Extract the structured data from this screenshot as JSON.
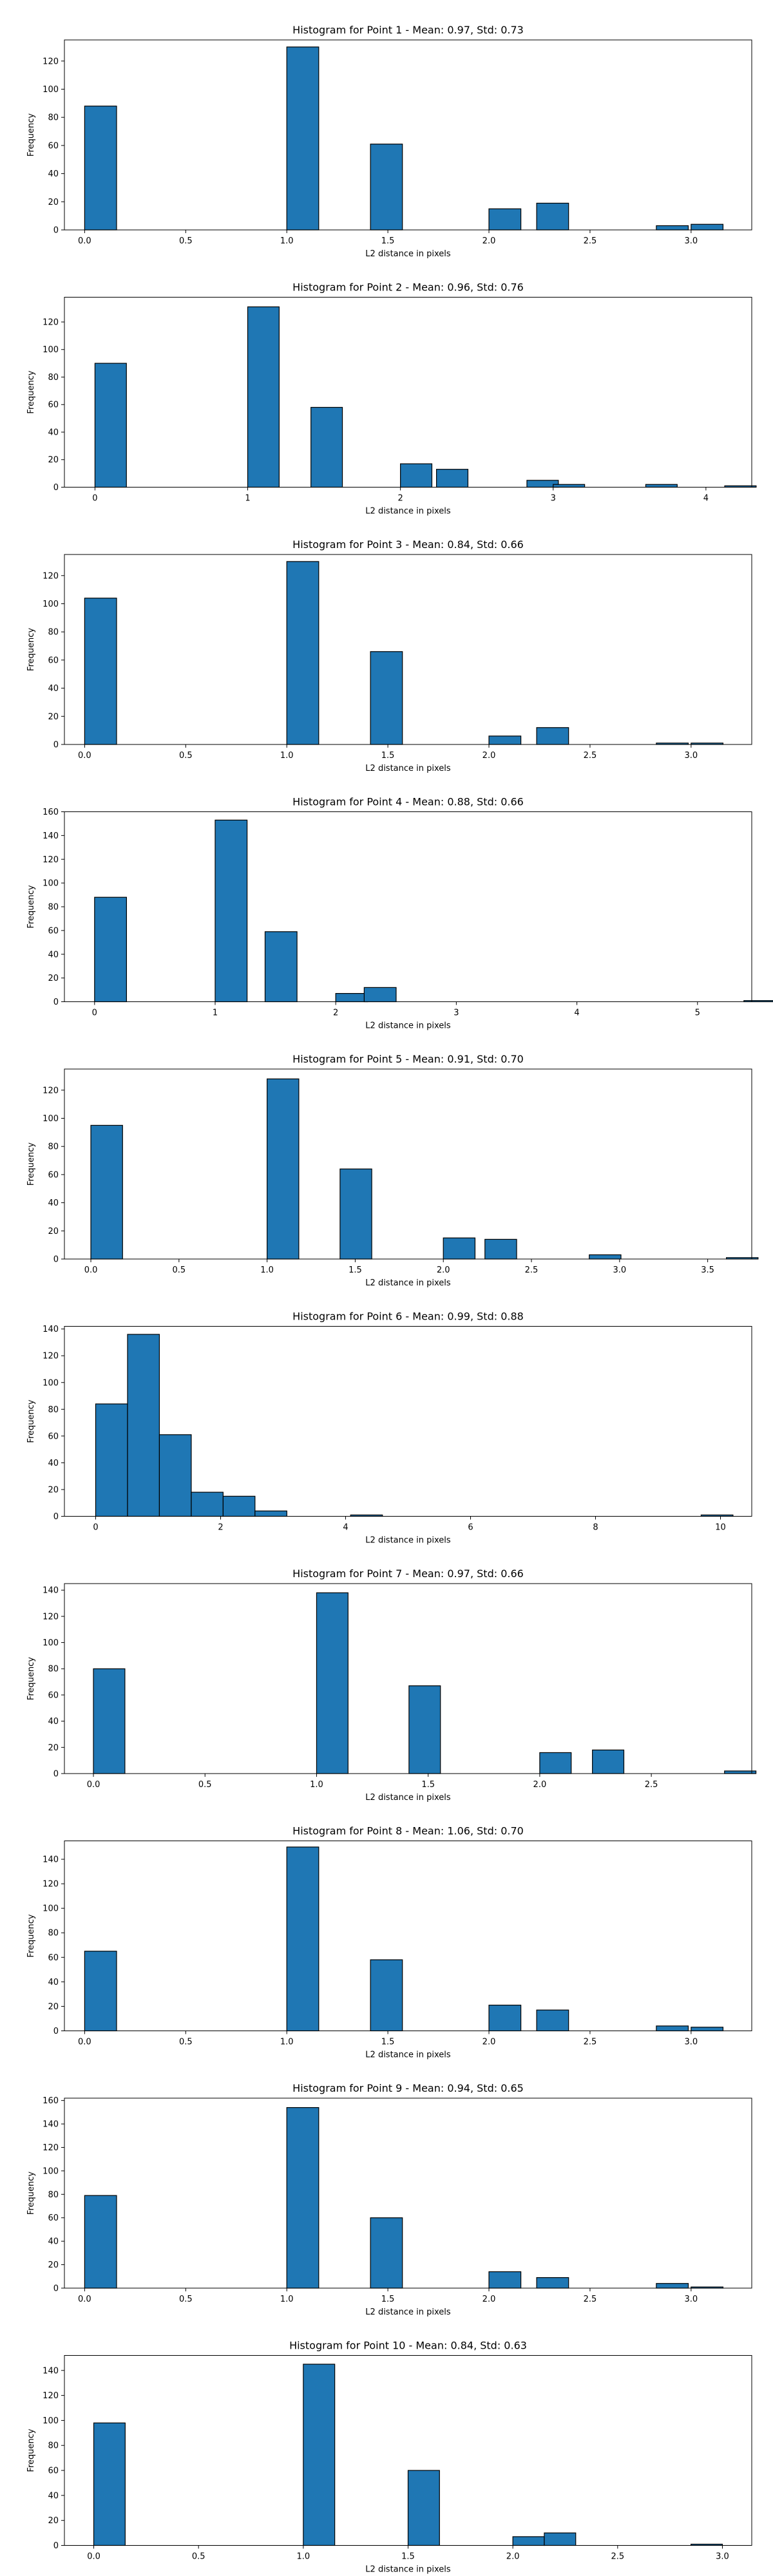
{
  "style": {
    "bar_color": "#1f77b4",
    "edge_color": "#000000",
    "background": "#ffffff"
  },
  "chart_data": [
    {
      "type": "bar",
      "title": "Histogram for Point 1 - Mean: 0.97, Std: 0.73",
      "xlabel": "L2 distance in pixels",
      "ylabel": "Frequency",
      "xlim": [
        -0.1,
        3.3
      ],
      "ylim": [
        0,
        135
      ],
      "xticks": [
        "0.0",
        "0.5",
        "1.0",
        "1.5",
        "2.0",
        "2.5",
        "3.0"
      ],
      "xtick_values": [
        0,
        0.5,
        1,
        1.5,
        2,
        2.5,
        3
      ],
      "yticks": [
        0,
        20,
        40,
        60,
        80,
        100,
        120
      ],
      "bin_width": 0.158,
      "bars": [
        {
          "x": 0.0,
          "value": 88
        },
        {
          "x": 1.0,
          "value": 130
        },
        {
          "x": 1.414,
          "value": 61
        },
        {
          "x": 2.0,
          "value": 15
        },
        {
          "x": 2.236,
          "value": 19
        },
        {
          "x": 2.828,
          "value": 3
        },
        {
          "x": 3.0,
          "value": 4
        }
      ]
    },
    {
      "type": "bar",
      "title": "Histogram for Point 2 - Mean: 0.96, Std: 0.76",
      "xlabel": "L2 distance in pixels",
      "ylabel": "Frequency",
      "xlim": [
        -0.2,
        4.3
      ],
      "ylim": [
        0,
        138
      ],
      "xticks": [
        "0",
        "1",
        "2",
        "3",
        "4"
      ],
      "xtick_values": [
        0,
        1,
        2,
        3,
        4
      ],
      "yticks": [
        0,
        20,
        40,
        60,
        80,
        100,
        120
      ],
      "bin_width": 0.206,
      "bars": [
        {
          "x": 0.0,
          "value": 90
        },
        {
          "x": 1.0,
          "value": 131
        },
        {
          "x": 1.414,
          "value": 58
        },
        {
          "x": 2.0,
          "value": 17
        },
        {
          "x": 2.236,
          "value": 13
        },
        {
          "x": 2.828,
          "value": 5
        },
        {
          "x": 3.0,
          "value": 2
        },
        {
          "x": 3.606,
          "value": 2
        },
        {
          "x": 4.123,
          "value": 1
        }
      ]
    },
    {
      "type": "bar",
      "title": "Histogram for Point 3 - Mean: 0.84, Std: 0.66",
      "xlabel": "L2 distance in pixels",
      "ylabel": "Frequency",
      "xlim": [
        -0.1,
        3.3
      ],
      "ylim": [
        0,
        135
      ],
      "xticks": [
        "0.0",
        "0.5",
        "1.0",
        "1.5",
        "2.0",
        "2.5",
        "3.0"
      ],
      "xtick_values": [
        0,
        0.5,
        1,
        1.5,
        2,
        2.5,
        3
      ],
      "yticks": [
        0,
        20,
        40,
        60,
        80,
        100,
        120
      ],
      "bin_width": 0.158,
      "bars": [
        {
          "x": 0.0,
          "value": 104
        },
        {
          "x": 1.0,
          "value": 130
        },
        {
          "x": 1.414,
          "value": 66
        },
        {
          "x": 2.0,
          "value": 6
        },
        {
          "x": 2.236,
          "value": 12
        },
        {
          "x": 2.828,
          "value": 1
        },
        {
          "x": 3.0,
          "value": 1
        }
      ]
    },
    {
      "type": "bar",
      "title": "Histogram for Point 4 - Mean: 0.88, Std: 0.66",
      "xlabel": "L2 distance in pixels",
      "ylabel": "Frequency",
      "xlim": [
        -0.25,
        5.45
      ],
      "ylim": [
        0,
        160
      ],
      "xticks": [
        "0",
        "1",
        "2",
        "3",
        "4",
        "5"
      ],
      "xtick_values": [
        0,
        1,
        2,
        3,
        4,
        5
      ],
      "yticks": [
        0,
        20,
        40,
        60,
        80,
        100,
        120,
        140,
        160
      ],
      "bin_width": 0.265,
      "bars": [
        {
          "x": 0.0,
          "value": 88
        },
        {
          "x": 1.0,
          "value": 153
        },
        {
          "x": 1.414,
          "value": 59
        },
        {
          "x": 2.0,
          "value": 7
        },
        {
          "x": 2.236,
          "value": 12
        },
        {
          "x": 5.385,
          "value": 1
        }
      ]
    },
    {
      "type": "bar",
      "title": "Histogram for Point 5 - Mean: 0.91, Std: 0.70",
      "xlabel": "L2 distance in pixels",
      "ylabel": "Frequency",
      "xlim": [
        -0.15,
        3.75
      ],
      "ylim": [
        0,
        135
      ],
      "xticks": [
        "0.0",
        "0.5",
        "1.0",
        "1.5",
        "2.0",
        "2.5",
        "3.0",
        "3.5"
      ],
      "xtick_values": [
        0,
        0.5,
        1,
        1.5,
        2,
        2.5,
        3,
        3.5
      ],
      "yticks": [
        0,
        20,
        40,
        60,
        80,
        100,
        120
      ],
      "bin_width": 0.18,
      "bars": [
        {
          "x": 0.0,
          "value": 95
        },
        {
          "x": 1.0,
          "value": 128
        },
        {
          "x": 1.414,
          "value": 64
        },
        {
          "x": 2.0,
          "value": 15
        },
        {
          "x": 2.236,
          "value": 14
        },
        {
          "x": 2.828,
          "value": 3
        },
        {
          "x": 3.606,
          "value": 1
        }
      ]
    },
    {
      "type": "bar",
      "title": "Histogram for Point 6 - Mean: 0.99, Std: 0.88",
      "xlabel": "L2 distance in pixels",
      "ylabel": "Frequency",
      "xlim": [
        -0.5,
        10.5
      ],
      "ylim": [
        0,
        142
      ],
      "xticks": [
        "0",
        "2",
        "4",
        "6",
        "8",
        "10"
      ],
      "xtick_values": [
        0,
        2,
        4,
        6,
        8,
        10
      ],
      "yticks": [
        0,
        20,
        40,
        60,
        80,
        100,
        120,
        140
      ],
      "bin_width": 0.51,
      "bars": [
        {
          "x": 0.0,
          "value": 84
        },
        {
          "x": 0.51,
          "value": 136
        },
        {
          "x": 1.02,
          "value": 61
        },
        {
          "x": 1.53,
          "value": 18
        },
        {
          "x": 2.04,
          "value": 15
        },
        {
          "x": 2.55,
          "value": 4
        },
        {
          "x": 4.08,
          "value": 1
        },
        {
          "x": 9.69,
          "value": 1
        }
      ]
    },
    {
      "type": "bar",
      "title": "Histogram for Point 7 - Mean: 0.97, Std: 0.66",
      "xlabel": "L2 distance in pixels",
      "ylabel": "Frequency",
      "xlim": [
        -0.13,
        2.95
      ],
      "ylim": [
        0,
        145
      ],
      "xticks": [
        "0.0",
        "0.5",
        "1.0",
        "1.5",
        "2.0",
        "2.5"
      ],
      "xtick_values": [
        0,
        0.5,
        1,
        1.5,
        2,
        2.5
      ],
      "yticks": [
        0,
        20,
        40,
        60,
        80,
        100,
        120,
        140
      ],
      "bin_width": 0.141,
      "bars": [
        {
          "x": 0.0,
          "value": 80
        },
        {
          "x": 1.0,
          "value": 138
        },
        {
          "x": 1.414,
          "value": 67
        },
        {
          "x": 2.0,
          "value": 16
        },
        {
          "x": 2.236,
          "value": 18
        },
        {
          "x": 2.828,
          "value": 2
        }
      ]
    },
    {
      "type": "bar",
      "title": "Histogram for Point 8 - Mean: 1.06, Std: 0.70",
      "xlabel": "L2 distance in pixels",
      "ylabel": "Frequency",
      "xlim": [
        -0.1,
        3.3
      ],
      "ylim": [
        0,
        155
      ],
      "xticks": [
        "0.0",
        "0.5",
        "1.0",
        "1.5",
        "2.0",
        "2.5",
        "3.0"
      ],
      "xtick_values": [
        0,
        0.5,
        1,
        1.5,
        2,
        2.5,
        3
      ],
      "yticks": [
        0,
        20,
        40,
        60,
        80,
        100,
        120,
        140
      ],
      "bin_width": 0.158,
      "bars": [
        {
          "x": 0.0,
          "value": 65
        },
        {
          "x": 1.0,
          "value": 150
        },
        {
          "x": 1.414,
          "value": 58
        },
        {
          "x": 2.0,
          "value": 21
        },
        {
          "x": 2.236,
          "value": 17
        },
        {
          "x": 2.828,
          "value": 4
        },
        {
          "x": 3.0,
          "value": 3
        }
      ]
    },
    {
      "type": "bar",
      "title": "Histogram for Point 9 - Mean: 0.94, Std: 0.65",
      "xlabel": "L2 distance in pixels",
      "ylabel": "Frequency",
      "xlim": [
        -0.1,
        3.3
      ],
      "ylim": [
        0,
        162
      ],
      "xticks": [
        "0.0",
        "0.5",
        "1.0",
        "1.5",
        "2.0",
        "2.5",
        "3.0"
      ],
      "xtick_values": [
        0,
        0.5,
        1,
        1.5,
        2,
        2.5,
        3
      ],
      "yticks": [
        0,
        20,
        40,
        60,
        80,
        100,
        120,
        140,
        160
      ],
      "bin_width": 0.158,
      "bars": [
        {
          "x": 0.0,
          "value": 79
        },
        {
          "x": 1.0,
          "value": 154
        },
        {
          "x": 1.414,
          "value": 60
        },
        {
          "x": 2.0,
          "value": 14
        },
        {
          "x": 2.236,
          "value": 9
        },
        {
          "x": 2.828,
          "value": 4
        },
        {
          "x": 3.0,
          "value": 1
        }
      ]
    },
    {
      "type": "bar",
      "title": "Histogram for Point 10 - Mean: 0.84, Std: 0.63",
      "xlabel": "L2 distance in pixels",
      "ylabel": "Frequency",
      "xlim": [
        -0.14,
        3.14
      ],
      "ylim": [
        0,
        152
      ],
      "xticks": [
        "0.0",
        "0.5",
        "1.0",
        "1.5",
        "2.0",
        "2.5",
        "3.0"
      ],
      "xtick_values": [
        0,
        0.5,
        1,
        1.5,
        2,
        2.5,
        3
      ],
      "yticks": [
        0,
        20,
        40,
        60,
        80,
        100,
        120,
        140
      ],
      "bin_width": 0.15,
      "bars": [
        {
          "x": 0.0,
          "value": 98
        },
        {
          "x": 1.0,
          "value": 145
        },
        {
          "x": 1.5,
          "value": 60
        },
        {
          "x": 2.0,
          "value": 7
        },
        {
          "x": 2.15,
          "value": 10
        },
        {
          "x": 2.85,
          "value": 1
        }
      ]
    }
  ]
}
